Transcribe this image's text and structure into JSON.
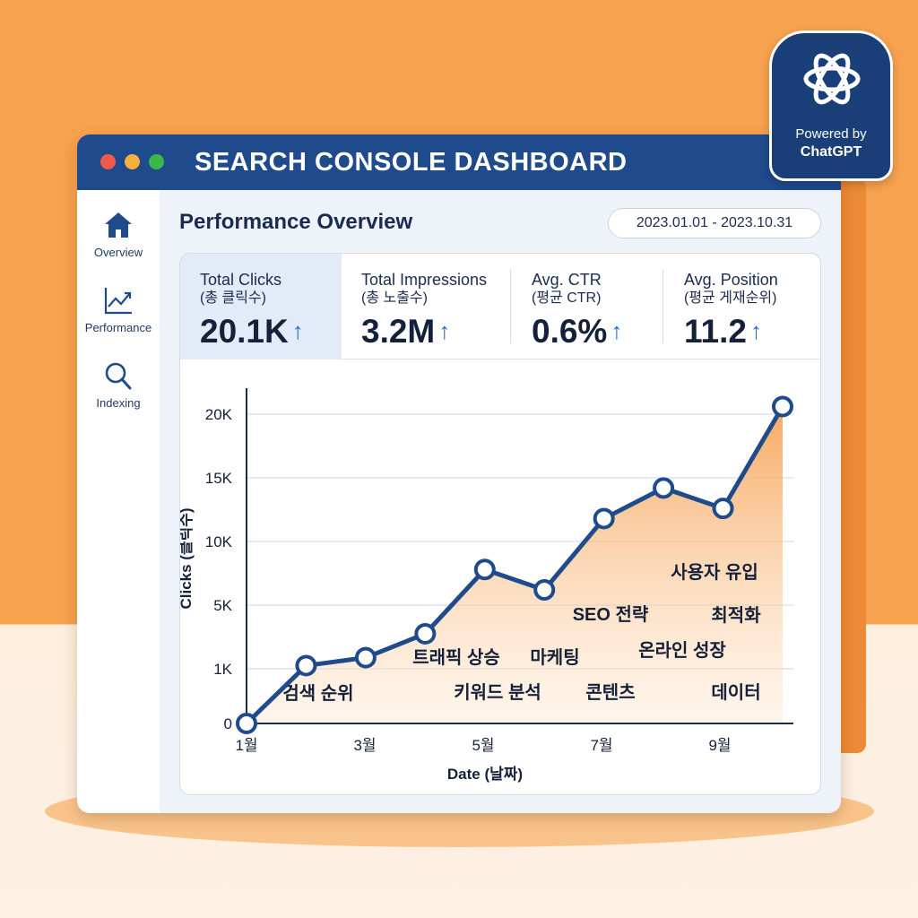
{
  "app": {
    "title": "SEARCH CONSOLE DASHBOARD"
  },
  "badge": {
    "line1": "Powered by",
    "line2": "ChatGPT",
    "icon": "openai-logo-icon"
  },
  "sidebar": {
    "items": [
      {
        "label": "Overview",
        "icon": "home-icon"
      },
      {
        "label": "Performance",
        "icon": "line-chart-icon"
      },
      {
        "label": "Indexing",
        "icon": "search-icon"
      }
    ]
  },
  "main": {
    "title": "Performance Overview",
    "date_range": "2023.01.01 - 2023.10.31"
  },
  "metrics": [
    {
      "label": "Total Clicks",
      "sub": "(총 클릭수)",
      "value": "20.1K",
      "trend": "↑"
    },
    {
      "label": "Total Impressions",
      "sub": "(총 노출수)",
      "value": "3.2M",
      "trend": "↑"
    },
    {
      "label": "Avg. CTR",
      "sub": "(평균 CTR)",
      "value": "0.6%",
      "trend": "↑"
    },
    {
      "label": "Avg. Position",
      "sub": "(평균 게재순위)",
      "value": "11.2",
      "trend": "↑"
    }
  ],
  "colors": {
    "line": "#1f4a8c",
    "fill": "#f7a55a",
    "accent": "#1c6fd8"
  },
  "chart_data": {
    "type": "line",
    "xlabel": "Date (날짜)",
    "ylabel": "Clicks (클릭수)",
    "y_ticks": [
      "0",
      "1K",
      "5K",
      "10K",
      "15K",
      "20K"
    ],
    "x_tick_labels": [
      "1월",
      "3월",
      "5월",
      "7월",
      "9월"
    ],
    "series": [
      {
        "values": [
          0,
          1.2,
          1.7,
          3.2,
          7.8,
          6.2,
          11.8,
          14.2,
          12.6,
          20.6
        ]
      }
    ],
    "annotations": [
      "검색 순위",
      "트래픽 상승",
      "키워드 분석",
      "마케팅",
      "콘텐츠",
      "SEO 전략",
      "온라인 성장",
      "사용자 유입",
      "최적화",
      "데이터"
    ]
  }
}
